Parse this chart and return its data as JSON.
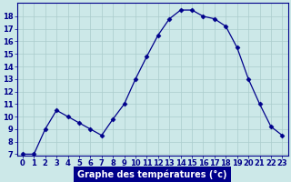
{
  "hours": [
    0,
    1,
    2,
    3,
    4,
    5,
    6,
    7,
    8,
    9,
    10,
    11,
    12,
    13,
    14,
    15,
    16,
    17,
    18,
    19,
    20,
    21,
    22,
    23
  ],
  "temps": [
    7,
    7,
    9,
    10.5,
    10,
    9.5,
    9,
    8.5,
    9.8,
    11,
    13,
    14.8,
    16.5,
    17.8,
    18.5,
    18.5,
    18,
    17.8,
    17.2,
    15.5,
    13,
    11,
    9.2,
    8.5
  ],
  "line_color": "#00008B",
  "marker": "D",
  "marker_size": 2.5,
  "bg_color": "#cce8e8",
  "grid_color": "#aacccc",
  "xlabel": "Graphe des températures (°c)",
  "tick_color": "#00008B",
  "ylim_min": 7,
  "ylim_max": 19,
  "xlim_min": -0.5,
  "xlim_max": 23.5,
  "yticks": [
    7,
    8,
    9,
    10,
    11,
    12,
    13,
    14,
    15,
    16,
    17,
    18
  ],
  "xticks": [
    0,
    1,
    2,
    3,
    4,
    5,
    6,
    7,
    8,
    9,
    10,
    11,
    12,
    13,
    14,
    15,
    16,
    17,
    18,
    19,
    20,
    21,
    22,
    23
  ],
  "xlabel_bg": "#00008B",
  "xlabel_fg": "#ffffff",
  "tick_fontsize": 6.0,
  "xlabel_fontsize": 7.0,
  "spine_color": "#00008B"
}
